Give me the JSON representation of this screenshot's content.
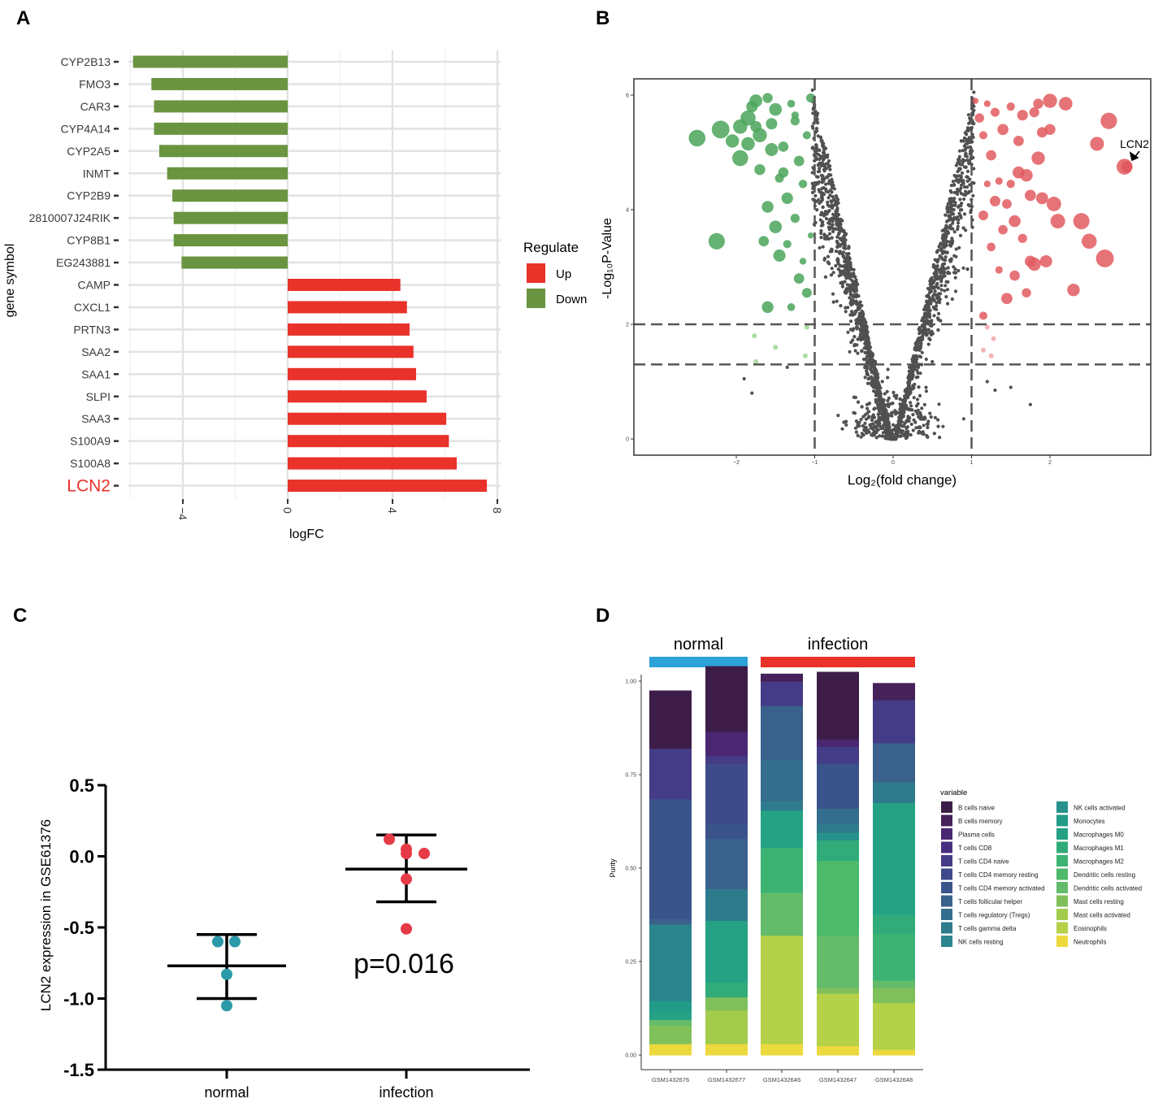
{
  "panels": [
    "A",
    "B",
    "C",
    "D"
  ],
  "colors": {
    "up": "#e8322a",
    "down": "#6a9440",
    "volc_up": "#e25a5f",
    "volc_down": "#4aa45a",
    "volc_ns": "#505050",
    "normal": "#2b9aa8",
    "infection": "#e63b47",
    "normal_bar": "#2ba3d8",
    "infection_bar": "#e8322a"
  },
  "chart_data": [
    {
      "id": "A",
      "type": "bar",
      "orientation": "horizontal",
      "xlabel": "logFC",
      "ylabel": "gene symbol",
      "xlim": [
        -6.5,
        8.2
      ],
      "xticks": [
        -4,
        0,
        4,
        8
      ],
      "highlight_category": "LCN2",
      "categories": [
        "CYP2B13",
        "FMO3",
        "CAR3",
        "CYP4A14",
        "CYP2A5",
        "INMT",
        "CYP2B9",
        "2810007J24RIK",
        "CYP8B1",
        "EG243881",
        "CAMP",
        "CXCL1",
        "PRTN3",
        "SAA2",
        "SAA1",
        "SLPI",
        "SAA3",
        "S100A9",
        "S100A8",
        "LCN2"
      ],
      "values": [
        -5.9,
        -5.2,
        -5.1,
        -5.1,
        -4.9,
        -4.6,
        -4.4,
        -4.35,
        -4.35,
        -4.05,
        4.3,
        4.55,
        4.65,
        4.8,
        4.9,
        5.3,
        6.05,
        6.15,
        6.45,
        7.6
      ],
      "legend_title": "Regulate",
      "legend": [
        {
          "label": "Up",
          "key": "up"
        },
        {
          "label": "Down",
          "key": "down"
        }
      ]
    },
    {
      "id": "B",
      "type": "scatter",
      "subtype": "volcano",
      "xlabel": "Log₂(fold change)",
      "ylabel": "-Log₁₀P-Value",
      "xlim": [
        -3.3,
        3.3
      ],
      "ylim": [
        -0.3,
        6.15
      ],
      "xticks": [
        -2,
        -1,
        0,
        1,
        2
      ],
      "yticks": [
        0,
        2,
        4,
        6
      ],
      "thresholds": {
        "x": [
          -1,
          1
        ],
        "y": [
          1.3,
          2
        ]
      },
      "annotation": {
        "label": "LCN2",
        "x": 2.98,
        "y": 4.75
      },
      "down_points": [
        [
          -2.5,
          5.25
        ],
        [
          -2.25,
          3.45
        ],
        [
          -2.2,
          5.4
        ],
        [
          -2.05,
          5.2
        ],
        [
          -1.95,
          5.45
        ],
        [
          -1.85,
          5.6
        ],
        [
          -1.8,
          5.8
        ],
        [
          -1.75,
          5.9
        ],
        [
          -1.7,
          5.3
        ],
        [
          -1.6,
          5.95
        ],
        [
          -1.55,
          5.5
        ],
        [
          -1.5,
          5.75
        ],
        [
          -1.45,
          4.55
        ],
        [
          -1.4,
          5.1
        ],
        [
          -1.35,
          4.2
        ],
        [
          -1.3,
          5.85
        ],
        [
          -1.25,
          5.55
        ],
        [
          -1.2,
          4.85
        ],
        [
          -1.15,
          3.1
        ],
        [
          -1.1,
          5.3
        ],
        [
          -1.05,
          5.95
        ],
        [
          -1.7,
          4.7
        ],
        [
          -1.6,
          4.05
        ],
        [
          -1.5,
          3.7
        ],
        [
          -1.35,
          3.4
        ],
        [
          -1.25,
          3.85
        ],
        [
          -1.45,
          3.2
        ],
        [
          -1.65,
          3.45
        ],
        [
          -1.15,
          4.45
        ],
        [
          -1.2,
          2.8
        ],
        [
          -1.3,
          2.3
        ],
        [
          -1.6,
          2.3
        ],
        [
          -1.1,
          2.55
        ],
        [
          -1.05,
          3.55
        ],
        [
          -1.4,
          4.65
        ],
        [
          -1.55,
          5.05
        ],
        [
          -1.75,
          5.45
        ],
        [
          -1.85,
          5.15
        ],
        [
          -1.95,
          4.9
        ],
        [
          -1.25,
          5.65
        ]
      ],
      "up_points": [
        [
          1.05,
          5.9
        ],
        [
          1.1,
          5.6
        ],
        [
          1.15,
          5.3
        ],
        [
          1.2,
          5.85
        ],
        [
          1.25,
          4.95
        ],
        [
          1.3,
          5.7
        ],
        [
          1.35,
          4.5
        ],
        [
          1.4,
          5.4
        ],
        [
          1.45,
          4.1
        ],
        [
          1.5,
          5.8
        ],
        [
          1.55,
          3.8
        ],
        [
          1.6,
          5.2
        ],
        [
          1.65,
          3.5
        ],
        [
          1.7,
          4.6
        ],
        [
          1.75,
          3.1
        ],
        [
          1.8,
          5.7
        ],
        [
          1.85,
          4.9
        ],
        [
          1.9,
          4.2
        ],
        [
          2.0,
          5.4
        ],
        [
          2.1,
          3.8
        ],
        [
          2.2,
          5.85
        ],
        [
          2.3,
          2.6
        ],
        [
          2.4,
          3.8
        ],
        [
          2.5,
          3.45
        ],
        [
          2.6,
          5.15
        ],
        [
          2.7,
          3.15
        ],
        [
          2.75,
          5.55
        ],
        [
          2.95,
          4.75
        ],
        [
          1.15,
          3.9
        ],
        [
          1.25,
          3.35
        ],
        [
          1.35,
          2.95
        ],
        [
          1.45,
          2.45
        ],
        [
          1.55,
          2.85
        ],
        [
          1.7,
          2.55
        ],
        [
          1.8,
          3.05
        ],
        [
          1.95,
          3.1
        ],
        [
          1.2,
          4.45
        ],
        [
          1.3,
          4.15
        ],
        [
          1.4,
          3.65
        ],
        [
          1.5,
          4.45
        ],
        [
          1.6,
          4.65
        ],
        [
          1.75,
          4.25
        ],
        [
          1.9,
          5.35
        ],
        [
          2.0,
          5.9
        ],
        [
          1.65,
          5.65
        ],
        [
          1.85,
          5.85
        ],
        [
          2.05,
          4.1
        ],
        [
          1.15,
          2.15
        ]
      ],
      "ns_seed": 7,
      "ns_count": 2200
    },
    {
      "id": "C",
      "type": "scatter",
      "subtype": "dot-with-error-bars",
      "ylabel": "LCN2 expression in GSE61376",
      "ylim": [
        -1.5,
        0.5
      ],
      "yticks": [
        0.5,
        0.0,
        -0.5,
        -1.0,
        -1.5
      ],
      "ytick_labels": [
        "0.5",
        "0.0",
        "-0.5",
        "-1.0",
        "-1.5"
      ],
      "categories": [
        "normal",
        "infection"
      ],
      "groups": [
        {
          "name": "normal",
          "points": [
            -0.6,
            -0.6,
            -0.83,
            -1.05
          ],
          "mean": -0.77,
          "upper": -0.55,
          "lower": -1.0
        },
        {
          "name": "infection",
          "points": [
            0.12,
            0.05,
            0.02,
            0.02,
            -0.16,
            -0.51
          ],
          "mean": -0.09,
          "upper": 0.15,
          "lower": -0.32
        }
      ],
      "annotation": "p=0.016"
    },
    {
      "id": "D",
      "type": "bar",
      "stacked": true,
      "ylabel": "Purity",
      "ylim": [
        0,
        1
      ],
      "yticks": [
        "0.00",
        "0.25",
        "0.50",
        "0.75",
        "1.00"
      ],
      "group_labels": [
        {
          "label": "normal",
          "key": "normal_bar",
          "first": 0,
          "last": 1
        },
        {
          "label": "infection",
          "key": "infection_bar",
          "first": 2,
          "last": 4
        }
      ],
      "categories": [
        "GSM1432676",
        "GSM1432677",
        "GSM1432646",
        "GSM1432647",
        "GSM1432648"
      ],
      "legend_title": "variable",
      "legend_columns": [
        [
          "B cells naive",
          "B cells memory",
          "Plasma cells",
          "T cells CD8",
          "T cells CD4 naive",
          "T cells CD4 memory resting",
          "T cells CD4 memory activated",
          "T cells follicular helper",
          "T cells regulatory (Tregs)",
          "T cells gamma delta",
          "NK cells resting"
        ],
        [
          "NK cells activated",
          "Monocytes",
          "Macrophages M0",
          "Macrophages M1",
          "Macrophages M2",
          "Dendritic cells resting",
          "Dendritic cells activated",
          "Mast cells resting",
          "Mast cells activated",
          "Eosinophils",
          "Neutrophils"
        ]
      ],
      "series": [
        {
          "name": "B cells naive",
          "color": "#3d1d48",
          "values": [
            0.155,
            0.175,
            0.0,
            0.18,
            0.0
          ]
        },
        {
          "name": "B cells memory",
          "color": "#46215a",
          "values": [
            0.0,
            0.0,
            0.02,
            0.0,
            0.045
          ]
        },
        {
          "name": "Plasma cells",
          "color": "#4a2772",
          "values": [
            0.0,
            0.065,
            0.0,
            0.02,
            0.0
          ]
        },
        {
          "name": "T cells CD8",
          "color": "#482e7f",
          "values": [
            0.0,
            0.0,
            0.0,
            0.0,
            0.0
          ]
        },
        {
          "name": "T cells CD4 naive",
          "color": "#443c86",
          "values": [
            0.135,
            0.02,
            0.065,
            0.045,
            0.115
          ]
        },
        {
          "name": "T cells CD4 memory resting",
          "color": "#3e4a89",
          "values": [
            0.0,
            0.16,
            0.0,
            0.0,
            0.0
          ]
        },
        {
          "name": "T cells CD4 memory activated",
          "color": "#3a538b",
          "values": [
            0.32,
            0.04,
            0.0,
            0.12,
            0.0
          ]
        },
        {
          "name": "T cells follicular helper",
          "color": "#3a618c",
          "values": [
            0.015,
            0.135,
            0.145,
            0.0,
            0.105
          ]
        },
        {
          "name": "T cells regulatory (Tregs)",
          "color": "#346d8d",
          "values": [
            0.0,
            0.0,
            0.11,
            0.04,
            0.0
          ]
        },
        {
          "name": "T cells gamma delta",
          "color": "#2f7b8e",
          "values": [
            0.0,
            0.085,
            0.025,
            0.025,
            0.055
          ]
        },
        {
          "name": "NK cells resting",
          "color": "#2b858e",
          "values": [
            0.205,
            0.0,
            0.0,
            0.0,
            0.0
          ]
        },
        {
          "name": "NK cells activated",
          "color": "#27918c",
          "values": [
            0.0,
            0.0,
            0.0,
            0.02,
            0.0
          ]
        },
        {
          "name": "Monocytes",
          "color": "#229c88",
          "values": [
            0.03,
            0.0,
            0.0,
            0.0,
            0.0
          ]
        },
        {
          "name": "Macrophages M0",
          "color": "#25a184",
          "values": [
            0.02,
            0.165,
            0.1,
            0.0,
            0.3
          ]
        },
        {
          "name": "Macrophages M1",
          "color": "#30ab79",
          "values": [
            0.0,
            0.04,
            0.0,
            0.055,
            0.05
          ]
        },
        {
          "name": "Macrophages M2",
          "color": "#3cb373",
          "values": [
            0.0,
            0.0,
            0.12,
            0.0,
            0.125
          ]
        },
        {
          "name": "Dendritic cells resting",
          "color": "#4cba68",
          "values": [
            0.0,
            0.0,
            0.0,
            0.2,
            0.0
          ]
        },
        {
          "name": "Dendritic cells activated",
          "color": "#64bb6a",
          "values": [
            0.015,
            0.0,
            0.115,
            0.14,
            0.02
          ]
        },
        {
          "name": "Mast cells resting",
          "color": "#80c05a",
          "values": [
            0.05,
            0.035,
            0.0,
            0.015,
            0.04
          ]
        },
        {
          "name": "Mast cells activated",
          "color": "#a3cb4c",
          "values": [
            0.0,
            0.09,
            0.0,
            0.0,
            0.0
          ]
        },
        {
          "name": "Eosinophils",
          "color": "#b4d148",
          "values": [
            0.0,
            0.0,
            0.29,
            0.14,
            0.125
          ]
        },
        {
          "name": "Neutrophils",
          "color": "#ecd93e",
          "values": [
            0.03,
            0.03,
            0.03,
            0.025,
            0.015
          ]
        }
      ]
    }
  ]
}
